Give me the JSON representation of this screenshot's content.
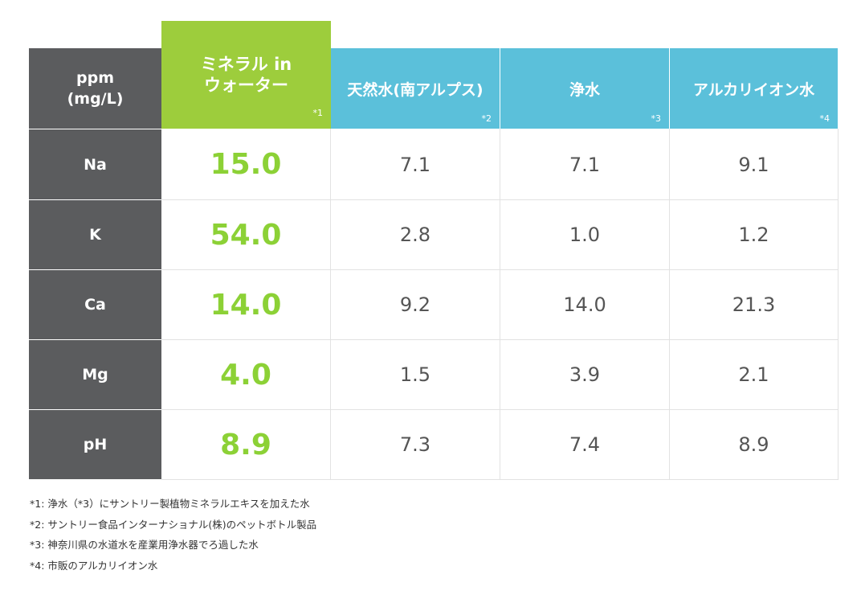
{
  "colors": {
    "header_dark": "#5b5c5e",
    "highlight_green": "#9dcd3c",
    "highlight_value": "#8cd136",
    "header_blue": "#5bc0da",
    "value_text": "#555555"
  },
  "chart_data": {
    "type": "table",
    "corner_label": [
      "ppm",
      "(mg/L)"
    ],
    "highlight_column": 0,
    "columns": [
      {
        "name_lines": [
          "ミネラル in",
          "ウォーター"
        ],
        "note": "*1"
      },
      {
        "name_lines": [
          "天然水(南アルプス)"
        ],
        "note": "*2"
      },
      {
        "name_lines": [
          "浄水"
        ],
        "note": "*3"
      },
      {
        "name_lines": [
          "アルカリイオン水"
        ],
        "note": "*4"
      }
    ],
    "rows": [
      {
        "label": "Na",
        "values": [
          "15.0",
          "7.1",
          "7.1",
          "9.1"
        ]
      },
      {
        "label": "K",
        "values": [
          "54.0",
          "2.8",
          "1.0",
          "1.2"
        ]
      },
      {
        "label": "Ca",
        "values": [
          "14.0",
          "9.2",
          "14.0",
          "21.3"
        ]
      },
      {
        "label": "Mg",
        "values": [
          "4.0",
          "1.5",
          "3.9",
          "2.1"
        ]
      },
      {
        "label": "pH",
        "values": [
          "8.9",
          "7.3",
          "7.4",
          "8.9"
        ]
      }
    ]
  },
  "footnotes": [
    "*1: 浄水（*3）にサントリー製植物ミネラルエキスを加えた水",
    "*2: サントリー食品インターナショナル(株)のペットボトル製品",
    "*3: 神奈川県の水道水を産業用浄水器でろ過した水",
    "*4: 市販のアルカリイオン水"
  ]
}
